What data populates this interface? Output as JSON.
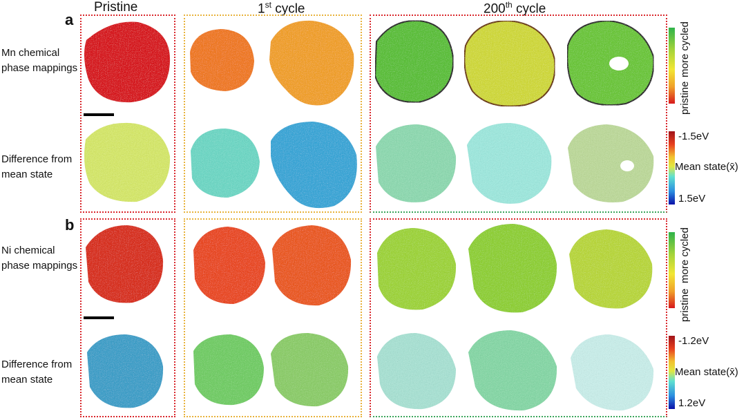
{
  "headers": {
    "pristine": "Pristine",
    "cycle1_num": "1",
    "cycle1_sup": "st",
    "cycle1_rest": " cycle",
    "cycle200_num": "200",
    "cycle200_sup": "th",
    "cycle200_rest": " cycle"
  },
  "panels": {
    "a": {
      "letter": "a",
      "row1_label_line1": "Mn chemical",
      "row1_label_line2": "phase mappings",
      "row2_label_line1": "Difference from",
      "row2_label_line2": "mean state",
      "phase_bar_top": "more cycled",
      "phase_bar_bottom": "pristine",
      "diff_top": "-1.5eV",
      "diff_mid": "Mean state(x̄)",
      "diff_bottom": "1.5eV"
    },
    "b": {
      "letter": "b",
      "row1_label_line1": "Ni chemical",
      "row1_label_line2": "phase mappings",
      "row2_label_line1": "Difference from",
      "row2_label_line2": "mean state",
      "phase_bar_top": "more cycled",
      "phase_bar_bottom": "pristine",
      "diff_top": "-1.2eV",
      "diff_mid": "Mean state(x̄)",
      "diff_bottom": "1.2eV"
    }
  },
  "colors": {
    "pristine_box": "#d9262b",
    "cycle1_box": "#e8b23a",
    "cycle200_box_top": "#d9262b",
    "cycle200_box_bottom": "#3aa55a",
    "jet_red": "#d7191c",
    "jet_orange": "#f07a22",
    "jet_yellow": "#f2e634",
    "jet_green": "#5cc43a",
    "jet_cyan": "#5fe0d0",
    "jet_blue": "#1a2cc0"
  }
}
